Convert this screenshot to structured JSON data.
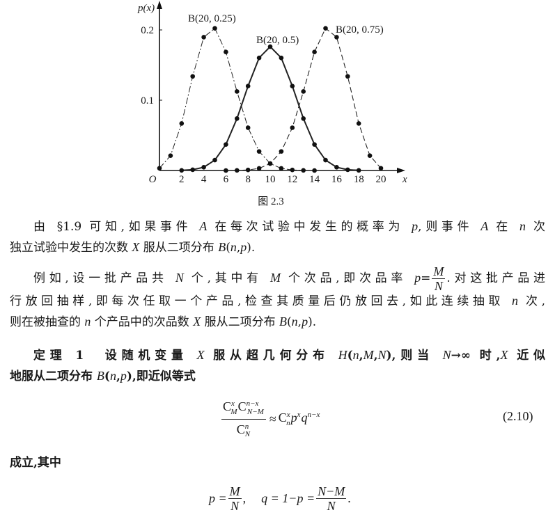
{
  "figure": {
    "caption": "图 2.3",
    "chart_data": {
      "type": "line",
      "ylabel": "p(x)",
      "xlabel": "x",
      "origin_label": "O",
      "xlim": [
        0,
        20
      ],
      "ylim": [
        0,
        0.2
      ],
      "x_ticks": [
        "2",
        "4",
        "6",
        "8",
        "10",
        "12",
        "14",
        "16",
        "18",
        "20"
      ],
      "y_ticks": [
        "0.1",
        "0.2"
      ],
      "grid": false,
      "markers": "filled circles",
      "series": [
        {
          "name": "B(20, 0.25)",
          "style": "dash-dot",
          "x": [
            0,
            1,
            2,
            3,
            4,
            5,
            6,
            7,
            8,
            9,
            10,
            11,
            12,
            13,
            14
          ],
          "y": [
            0.0032,
            0.0211,
            0.0669,
            0.1339,
            0.1897,
            0.2023,
            0.1686,
            0.1124,
            0.0609,
            0.0271,
            0.0099,
            0.003,
            0.0008,
            0.0002,
            0.0
          ]
        },
        {
          "name": "B(20, 0.5)",
          "style": "solid",
          "x": [
            2,
            3,
            4,
            5,
            6,
            7,
            8,
            9,
            10,
            11,
            12,
            13,
            14,
            15,
            16,
            17,
            18
          ],
          "y": [
            0.0002,
            0.0011,
            0.0046,
            0.0148,
            0.037,
            0.0739,
            0.1201,
            0.1602,
            0.1762,
            0.1602,
            0.1201,
            0.0739,
            0.037,
            0.0148,
            0.0046,
            0.0011,
            0.0002
          ]
        },
        {
          "name": "B(20, 0.75)",
          "style": "dashed",
          "x": [
            6,
            7,
            8,
            9,
            10,
            11,
            12,
            13,
            14,
            15,
            16,
            17,
            18,
            19,
            20
          ],
          "y": [
            0.0,
            0.0002,
            0.0008,
            0.003,
            0.0099,
            0.0271,
            0.0609,
            0.1124,
            0.1686,
            0.2023,
            0.1897,
            0.1339,
            0.0669,
            0.0211,
            0.0032
          ]
        }
      ]
    }
  },
  "text": {
    "lines": [
      [
        {
          "t": "由 §1.9 可知,如果事件 "
        },
        {
          "m": "A"
        },
        {
          "t": " 在每次试验中发生的概率为 "
        },
        {
          "m": "p"
        },
        {
          "t": ",则事件 "
        },
        {
          "m": "A"
        },
        {
          "t": " 在 "
        },
        {
          "m": "n"
        },
        {
          "t": " 次"
        }
      ],
      [
        {
          "t": "独立试验中发生的次数 "
        },
        {
          "m": "X"
        },
        {
          "t": " 服从二项分布 "
        },
        {
          "m": "B"
        },
        {
          "t": "("
        },
        {
          "m": "n"
        },
        {
          "t": ","
        },
        {
          "m": "p"
        },
        {
          "t": ")."
        }
      ],
      [
        {
          "t": "例如,设一批产品共 "
        },
        {
          "m": "N"
        },
        {
          "t": " 个,其中有 "
        },
        {
          "m": "M"
        },
        {
          "t": " 个次品,即次品率 "
        },
        {
          "m": "p"
        },
        {
          "t": "="
        },
        {
          "frac": [
            "M",
            "N"
          ]
        },
        {
          "t": ".对这批产品进"
        }
      ],
      [
        {
          "t": "行放回抽样,即每次任取一个产品,检查其质量后仍放回去,如此连续抽取 "
        },
        {
          "m": "n"
        },
        {
          "t": " 次,"
        }
      ],
      [
        {
          "t": "则在被抽查的 "
        },
        {
          "m": "n"
        },
        {
          "t": " 个产品中的次品数 "
        },
        {
          "m": "X"
        },
        {
          "t": " 服从二项分布 "
        },
        {
          "m": "B"
        },
        {
          "t": "("
        },
        {
          "m": "n"
        },
        {
          "t": ","
        },
        {
          "m": "p"
        },
        {
          "t": ")."
        }
      ],
      [
        {
          "t": "定理 1　设随机变量 "
        },
        {
          "m": "X"
        },
        {
          "t": " 服从超几何分布 "
        },
        {
          "m": "H"
        },
        {
          "t": "("
        },
        {
          "m": "n"
        },
        {
          "t": ","
        },
        {
          "m": "M"
        },
        {
          "t": ","
        },
        {
          "m": "N"
        },
        {
          "t": "),则当 "
        },
        {
          "m": "N"
        },
        {
          "t": "→∞ 时,"
        },
        {
          "m": "X"
        },
        {
          "t": " 近似"
        }
      ],
      [
        {
          "t": "地服从二项分布 "
        },
        {
          "m": "B"
        },
        {
          "t": "("
        },
        {
          "m": "n"
        },
        {
          "t": ","
        },
        {
          "m": "p"
        },
        {
          "t": "),即近似等式"
        }
      ],
      [
        {
          "t": "成立,其中"
        }
      ]
    ]
  },
  "formula_2_10": {
    "num": [
      {
        "base": "C",
        "sup": "x",
        "sub": "M"
      },
      {
        "base": "C",
        "sup": "n−x",
        "sub": "N−M"
      }
    ],
    "den": [
      {
        "base": "C",
        "sup": "n",
        "sub": "N"
      }
    ],
    "rel": "≈",
    "rhs": [
      {
        "base": "C",
        "sup": "x",
        "sub": "n"
      },
      {
        "base": "p",
        "sup": "x"
      },
      {
        "base": "q",
        "sup": "n−x"
      }
    ],
    "number": "(2.10)"
  },
  "formula_pq": {
    "p_lhs": "p =",
    "p_num": "M",
    "p_den": "N",
    "sep": ",",
    "q_lhs": "q = 1−p =",
    "q_num": "N−M",
    "q_den": "N",
    "end": "."
  }
}
